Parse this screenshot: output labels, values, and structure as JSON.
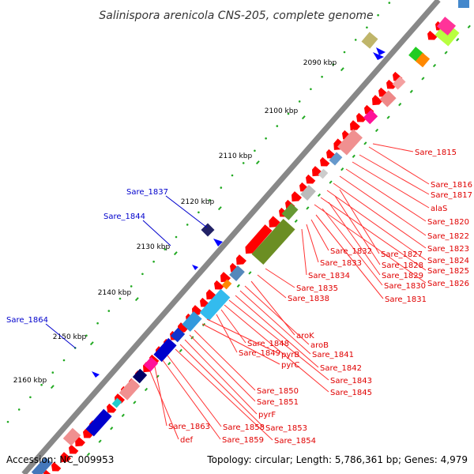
{
  "title": "Salinispora arenicola CNS-205, complete genome",
  "footer": {
    "accession": "Accession: NC_009953",
    "stats": "Topology: circular; Length: 5,786,361 bp; Genes: 4,979"
  },
  "ticks": [
    {
      "label": "2090 kbp"
    },
    {
      "label": "2100 kbp"
    },
    {
      "label": "2110 kbp"
    },
    {
      "label": "2120 kbp"
    },
    {
      "label": "2130 kbp"
    },
    {
      "label": "2140 kbp"
    },
    {
      "label": "2150 kbp"
    },
    {
      "label": "2160 kbp"
    }
  ],
  "genes_red": [
    {
      "label": "Sare_1815"
    },
    {
      "label": "Sare_1816"
    },
    {
      "label": "Sare_1817"
    },
    {
      "label": "alaS"
    },
    {
      "label": "Sare_1820"
    },
    {
      "label": "Sare_1822"
    },
    {
      "label": "Sare_1823"
    },
    {
      "label": "Sare_1824"
    },
    {
      "label": "Sare_1825"
    },
    {
      "label": "Sare_1826"
    },
    {
      "label": "Sare_1827"
    },
    {
      "label": "Sare_1828"
    },
    {
      "label": "Sare_1829"
    },
    {
      "label": "Sare_1830"
    },
    {
      "label": "Sare_1831"
    },
    {
      "label": "Sare_1832"
    },
    {
      "label": "Sare_1833"
    },
    {
      "label": "Sare_1834"
    },
    {
      "label": "Sare_1835"
    },
    {
      "label": "Sare_1838"
    },
    {
      "label": "aroK"
    },
    {
      "label": "aroB"
    },
    {
      "label": "Sare_1841"
    },
    {
      "label": "Sare_1842"
    },
    {
      "label": "Sare_1843"
    },
    {
      "label": "Sare_1845"
    },
    {
      "label": "Sare_1848"
    },
    {
      "label": "Sare_1849"
    },
    {
      "label": "pyrB"
    },
    {
      "label": "pyrC"
    },
    {
      "label": "Sare_1850"
    },
    {
      "label": "Sare_1851"
    },
    {
      "label": "pyrF"
    },
    {
      "label": "Sare_1853"
    },
    {
      "label": "Sare_1854"
    },
    {
      "label": "Sare_1858"
    },
    {
      "label": "Sare_1859"
    },
    {
      "label": "Sare_1863"
    },
    {
      "label": "def"
    }
  ],
  "genes_blue": [
    {
      "label": "Sare_1837"
    },
    {
      "label": "Sare_1844"
    },
    {
      "label": "Sare_1864"
    }
  ]
}
